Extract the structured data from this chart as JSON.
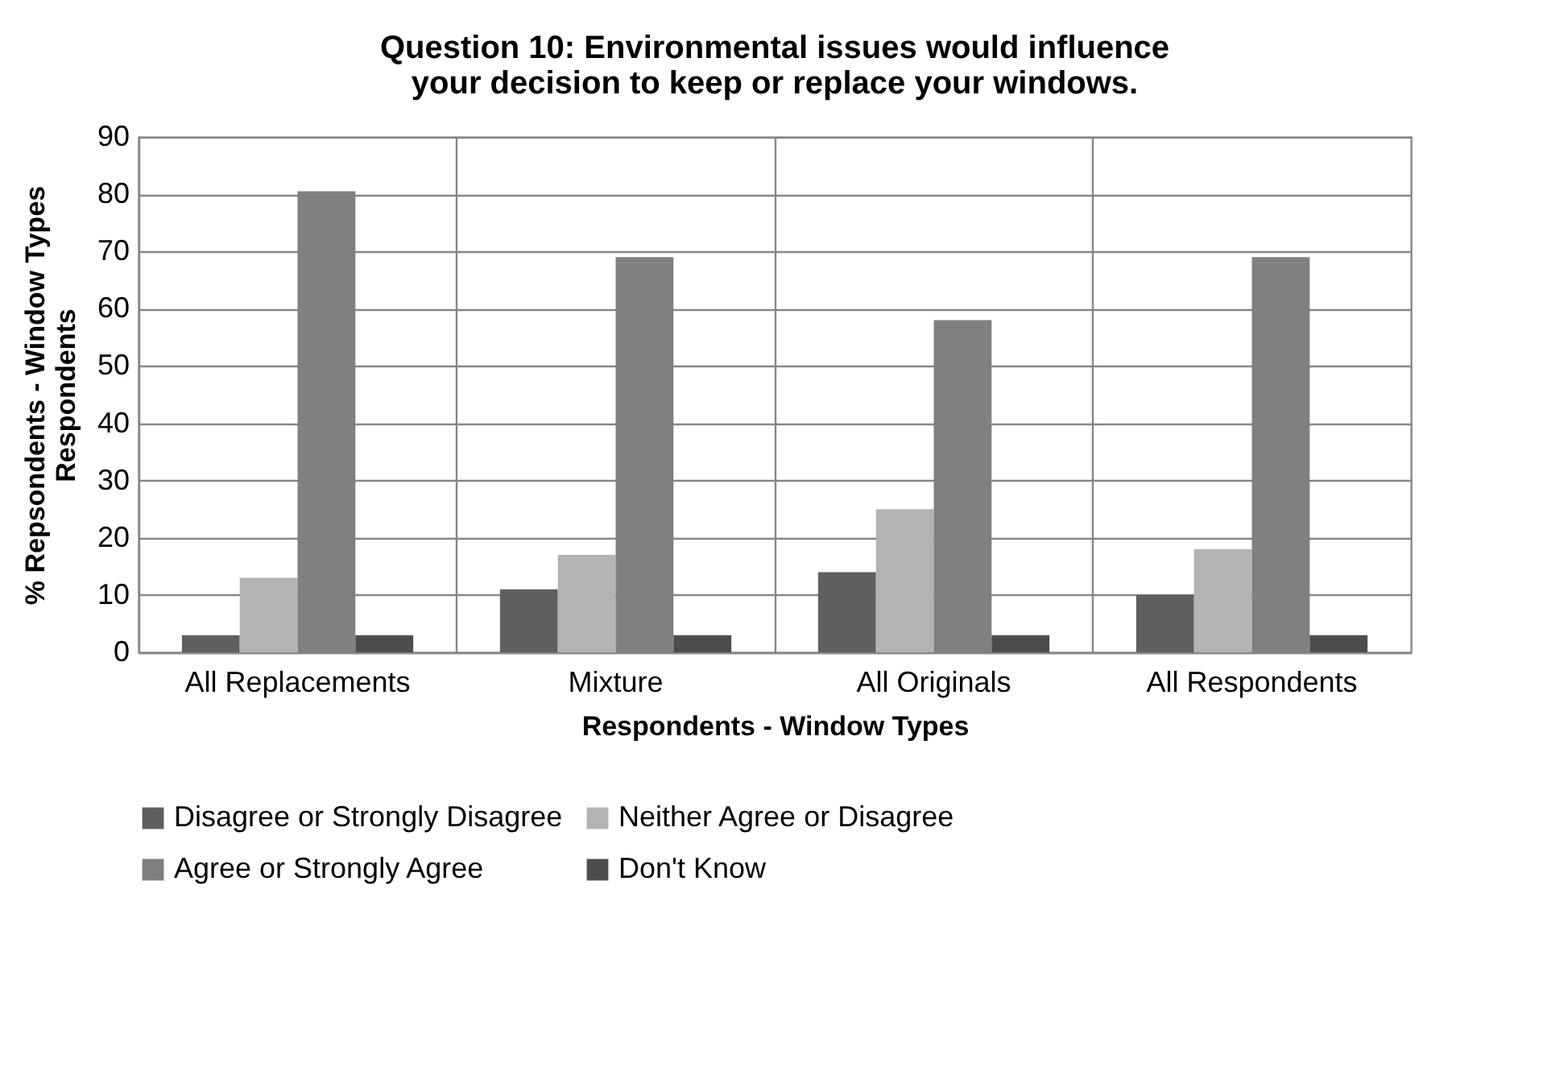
{
  "chart_data": {
    "type": "bar",
    "title": "Question 10: Environmental issues would influence your decision to keep or replace your windows.",
    "xlabel": "Respondents - Window Types",
    "ylabel": "% Repsondents - Window Types Respondents",
    "categories": [
      "All Replacements",
      "Mixture",
      "All Originals",
      "All Respondents"
    ],
    "series": [
      {
        "name": "Disagree or Strongly Disagree",
        "color": "#5f5f5f",
        "values": [
          3,
          11,
          14,
          10
        ]
      },
      {
        "name": "Neither Agree or Disagree",
        "color": "#b3b3b3",
        "values": [
          13,
          17,
          25,
          18
        ]
      },
      {
        "name": "Agree or Strongly Agree",
        "color": "#808080",
        "values": [
          80.5,
          69,
          58,
          69
        ]
      },
      {
        "name": "Don't Know",
        "color": "#4d4d4d",
        "values": [
          3,
          3,
          3,
          3
        ]
      }
    ],
    "ylim": [
      0,
      90
    ],
    "yticks": [
      0,
      10,
      20,
      30,
      40,
      50,
      60,
      70,
      80,
      90
    ],
    "grid": true,
    "legend": "bottom"
  }
}
